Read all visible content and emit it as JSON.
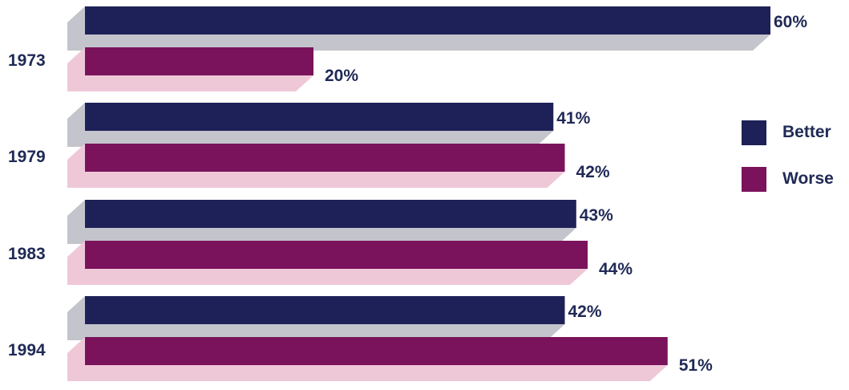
{
  "chart_data": {
    "type": "bar",
    "orientation": "horizontal",
    "categories": [
      "1973",
      "1979",
      "1983",
      "1994"
    ],
    "series": [
      {
        "name": "Better",
        "values": [
          60,
          41,
          43,
          42
        ],
        "color": "#1e2157"
      },
      {
        "name": "Worse",
        "values": [
          20,
          42,
          44,
          51
        ],
        "color": "#7a135b"
      }
    ],
    "value_labels": {
      "Better": [
        "60%",
        "41%",
        "43%",
        "42%"
      ],
      "Worse": [
        "20%",
        "42%",
        "44%",
        "51%"
      ]
    },
    "xlim": [
      0,
      60
    ],
    "value_suffix": "%",
    "grid": false,
    "legend_position": "right",
    "style": "3d"
  },
  "colors": {
    "better": "#1e2157",
    "worse": "#7a135b",
    "better_shadow": "#c3c4cc",
    "worse_shadow": "#efc8d8",
    "label_text": "#202a56"
  }
}
